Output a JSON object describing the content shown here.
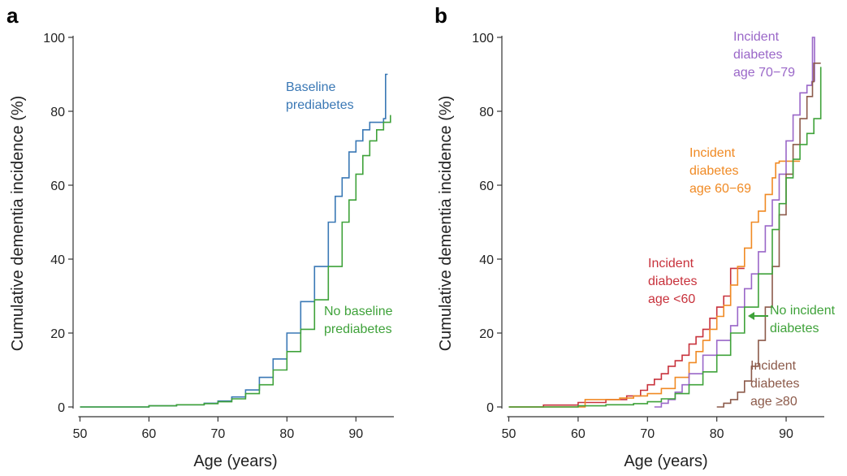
{
  "chart_data": [
    {
      "panel_label": "a",
      "type": "line",
      "xlabel": "Age (years)",
      "ylabel": "Cumulative dementia incidence (%)",
      "xlim": [
        49,
        95.5
      ],
      "ylim": [
        0,
        100
      ],
      "xticks": [
        50,
        60,
        70,
        80,
        90
      ],
      "yticks": [
        0,
        20,
        40,
        60,
        80,
        100
      ],
      "grid": false,
      "legend": "inline annotations",
      "colors": {
        "series_0": "#3a78b5",
        "series_1": "#3fa23a"
      },
      "annotations": [
        {
          "series": 0,
          "lines": [
            "Baseline",
            "prediabetes"
          ]
        },
        {
          "series": 1,
          "lines": [
            "No baseline",
            "prediabetes"
          ]
        }
      ],
      "series": [
        {
          "x": [
            50,
            55,
            60,
            64,
            68,
            70,
            72,
            74,
            76,
            78,
            80,
            82,
            84,
            86,
            87,
            88,
            89,
            90,
            91,
            92,
            93,
            94,
            94.3,
            94.3,
            94.6
          ],
          "y": [
            0,
            0,
            0.3,
            0.6,
            1.0,
            1.6,
            2.7,
            4.6,
            8,
            13,
            20,
            28.5,
            38,
            50,
            57,
            62,
            69,
            72,
            75,
            77,
            77,
            78,
            78,
            90,
            90
          ]
        },
        {
          "x": [
            50,
            55,
            60,
            64,
            68,
            70,
            72,
            74,
            76,
            78,
            80,
            82,
            84,
            86,
            88,
            89,
            90,
            91,
            92,
            93,
            94,
            95
          ],
          "y": [
            0,
            0,
            0.3,
            0.6,
            0.9,
            1.4,
            2.2,
            3.6,
            6,
            10,
            15,
            21,
            29,
            38,
            50,
            56,
            63,
            68,
            72,
            75,
            77,
            79
          ]
        }
      ]
    },
    {
      "panel_label": "b",
      "type": "line",
      "xlabel": "Age (years)",
      "ylabel": "Cumulative dementia incidence (%)",
      "xlim": [
        49,
        95.5
      ],
      "ylim": [
        0,
        100
      ],
      "xticks": [
        50,
        60,
        70,
        80,
        90
      ],
      "yticks": [
        0,
        20,
        40,
        60,
        80,
        100
      ],
      "grid": false,
      "legend": "inline annotations",
      "colors": {
        "series_0": "#c8323c",
        "series_1": "#f08a24",
        "series_2": "#9a67c8",
        "series_3": "#8c5a4a",
        "series_4": "#3fa23a"
      },
      "annotations": [
        {
          "series": 0,
          "lines": [
            "Incident",
            "diabetes",
            "age <60"
          ]
        },
        {
          "series": 1,
          "lines": [
            "Incident",
            "diabetes",
            "age 60−69"
          ]
        },
        {
          "series": 2,
          "lines": [
            "Incident",
            "diabetes",
            "age 70−79"
          ]
        },
        {
          "series": 3,
          "lines": [
            "Incident",
            "diabetes",
            "age ≥80"
          ]
        },
        {
          "series": 4,
          "lines": [
            "No incident",
            "diabetes"
          ]
        }
      ],
      "series": [
        {
          "x": [
            50,
            55,
            60,
            64,
            67,
            69,
            70,
            71,
            72,
            73,
            74,
            75,
            76,
            77,
            78,
            79,
            80,
            81,
            82,
            82,
            84
          ],
          "y": [
            0,
            0.5,
            1.2,
            2,
            3,
            4.5,
            6,
            7.5,
            9,
            11,
            12.5,
            14,
            17,
            19,
            21,
            24,
            27,
            30,
            33,
            37.5,
            37.5
          ]
        },
        {
          "x": [
            50,
            60.9,
            61,
            66,
            68,
            70,
            72,
            74,
            76,
            77,
            78,
            79,
            80,
            81,
            82,
            83,
            84,
            85,
            86,
            87,
            88,
            88.5,
            89,
            92
          ],
          "y": [
            0,
            0,
            2,
            2.4,
            3,
            3.6,
            5,
            8,
            12,
            15,
            18,
            21,
            24.5,
            27.5,
            33,
            38,
            43,
            50,
            53,
            57.5,
            62,
            66,
            66.5,
            66.5
          ]
        },
        {
          "x": [
            71,
            72,
            73,
            74,
            75,
            76,
            78,
            80,
            82,
            83,
            84,
            85,
            86,
            87,
            88,
            89,
            90,
            91,
            92,
            93,
            93.7,
            93.8,
            94.1
          ],
          "y": [
            0,
            1,
            2,
            4,
            6,
            9,
            14,
            18,
            22,
            27,
            32,
            36,
            42,
            49,
            56,
            63,
            72,
            79,
            85,
            87,
            88,
            100,
            88
          ]
        },
        {
          "x": [
            80,
            81,
            82,
            83,
            84,
            85,
            86,
            87,
            88,
            89,
            90,
            91,
            92,
            93,
            93.8,
            94,
            95
          ],
          "y": [
            0,
            1,
            2,
            4,
            7,
            11,
            18,
            27,
            38,
            52,
            63,
            71,
            78,
            84,
            88,
            93,
            93
          ]
        },
        {
          "x": [
            50,
            55,
            60,
            64,
            68,
            70,
            72,
            74,
            76,
            78,
            80,
            82,
            84,
            86,
            88,
            89,
            90,
            91,
            92,
            93,
            94,
            95
          ],
          "y": [
            0,
            0,
            0.3,
            0.6,
            0.9,
            1.4,
            2.2,
            3.6,
            6,
            9.5,
            14,
            20,
            27,
            36,
            48,
            55,
            62,
            67,
            71,
            74,
            78,
            92
          ]
        }
      ]
    }
  ]
}
